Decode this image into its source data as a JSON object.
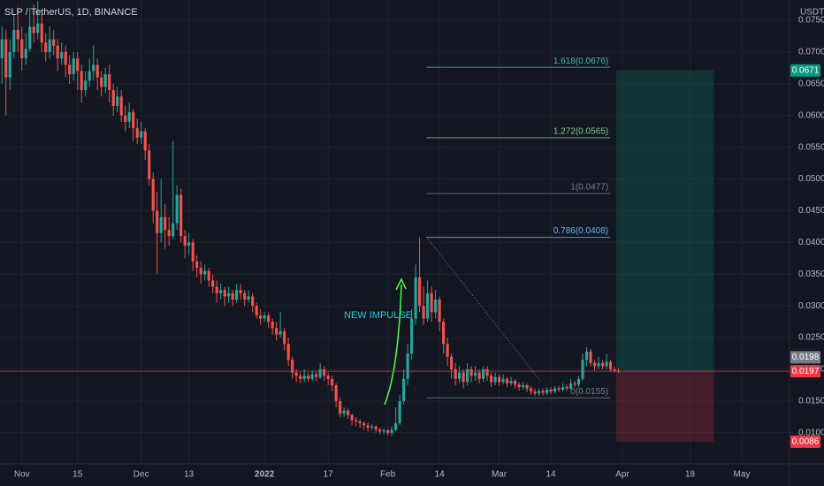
{
  "chart_data": {
    "type": "candlestick",
    "title": "SLP / TetherUS, 1D, BINANCE",
    "y_unit": "USDT",
    "up_color": "#26a69a",
    "down_color": "#ef5350",
    "ylim": [
      0.0051,
      0.0782
    ],
    "yticks": [
      {
        "value": 0.01,
        "label": "0.0100"
      },
      {
        "value": 0.015,
        "label": "0.0150"
      },
      {
        "value": 0.02,
        "label": "0.0200"
      },
      {
        "value": 0.025,
        "label": "0.0250"
      },
      {
        "value": 0.03,
        "label": "0.0300"
      },
      {
        "value": 0.035,
        "label": "0.0350"
      },
      {
        "value": 0.04,
        "label": "0.0400"
      },
      {
        "value": 0.045,
        "label": "0.0450"
      },
      {
        "value": 0.05,
        "label": "0.0500"
      },
      {
        "value": 0.055,
        "label": "0.0550"
      },
      {
        "value": 0.06,
        "label": "0.0600"
      },
      {
        "value": 0.065,
        "label": "0.0650"
      },
      {
        "value": 0.07,
        "label": "0.0700"
      },
      {
        "value": 0.075,
        "label": "0.0750"
      }
    ],
    "xlim": [
      -0.5,
      198
    ],
    "xticks": [
      {
        "value": 5,
        "label": "Nov"
      },
      {
        "value": 19,
        "label": "15"
      },
      {
        "value": 35,
        "label": "Dec"
      },
      {
        "value": 47,
        "label": "13"
      },
      {
        "value": 66,
        "label": "2022",
        "bold": true
      },
      {
        "value": 82,
        "label": "17"
      },
      {
        "value": 97,
        "label": "Feb"
      },
      {
        "value": 110,
        "label": "14"
      },
      {
        "value": 125,
        "label": "Mar"
      },
      {
        "value": 138,
        "label": "14"
      },
      {
        "value": 156,
        "label": "Apr"
      },
      {
        "value": 173,
        "label": "18"
      },
      {
        "value": 186,
        "label": "May"
      }
    ],
    "candles": [
      [
        0,
        0.069,
        0.074,
        0.065,
        0.072
      ],
      [
        1,
        0.072,
        0.0735,
        0.06,
        0.066
      ],
      [
        2,
        0.066,
        0.072,
        0.064,
        0.07
      ],
      [
        3,
        0.07,
        0.076,
        0.069,
        0.0735
      ],
      [
        4,
        0.0735,
        0.077,
        0.07,
        0.072
      ],
      [
        5,
        0.072,
        0.074,
        0.067,
        0.069
      ],
      [
        6,
        0.069,
        0.073,
        0.068,
        0.0705
      ],
      [
        7,
        0.0705,
        0.077,
        0.07,
        0.074
      ],
      [
        8,
        0.074,
        0.0775,
        0.0715,
        0.073
      ],
      [
        9,
        0.073,
        0.078,
        0.072,
        0.0745
      ],
      [
        10,
        0.0745,
        0.076,
        0.07,
        0.0715
      ],
      [
        11,
        0.0715,
        0.073,
        0.0685,
        0.07
      ],
      [
        12,
        0.07,
        0.074,
        0.069,
        0.072
      ],
      [
        13,
        0.072,
        0.0735,
        0.0695,
        0.071
      ],
      [
        14,
        0.071,
        0.072,
        0.067,
        0.069
      ],
      [
        15,
        0.069,
        0.0715,
        0.068,
        0.07
      ],
      [
        16,
        0.07,
        0.071,
        0.066,
        0.068
      ],
      [
        17,
        0.068,
        0.0695,
        0.065,
        0.0665
      ],
      [
        18,
        0.0665,
        0.07,
        0.0655,
        0.069
      ],
      [
        19,
        0.069,
        0.07,
        0.064,
        0.067
      ],
      [
        20,
        0.067,
        0.068,
        0.062,
        0.064
      ],
      [
        21,
        0.064,
        0.067,
        0.063,
        0.0655
      ],
      [
        22,
        0.0655,
        0.069,
        0.0645,
        0.067
      ],
      [
        23,
        0.067,
        0.071,
        0.0655,
        0.068
      ],
      [
        24,
        0.068,
        0.069,
        0.064,
        0.066
      ],
      [
        25,
        0.066,
        0.067,
        0.063,
        0.0645
      ],
      [
        26,
        0.0645,
        0.0675,
        0.0635,
        0.0665
      ],
      [
        27,
        0.0665,
        0.068,
        0.062,
        0.064
      ],
      [
        28,
        0.064,
        0.065,
        0.06,
        0.0615
      ],
      [
        29,
        0.0615,
        0.0645,
        0.0605,
        0.063
      ],
      [
        30,
        0.063,
        0.064,
        0.059,
        0.06
      ],
      [
        31,
        0.06,
        0.0615,
        0.0575,
        0.059
      ],
      [
        32,
        0.059,
        0.062,
        0.058,
        0.0605
      ],
      [
        33,
        0.0605,
        0.061,
        0.056,
        0.058
      ],
      [
        34,
        0.058,
        0.0595,
        0.0555,
        0.0565
      ],
      [
        35,
        0.0565,
        0.059,
        0.0555,
        0.0575
      ],
      [
        36,
        0.0575,
        0.058,
        0.053,
        0.0545
      ],
      [
        37,
        0.0545,
        0.0555,
        0.049,
        0.05
      ],
      [
        38,
        0.05,
        0.051,
        0.043,
        0.045
      ],
      [
        39,
        0.045,
        0.048,
        0.035,
        0.0415
      ],
      [
        40,
        0.0415,
        0.05,
        0.04,
        0.044
      ],
      [
        41,
        0.044,
        0.046,
        0.039,
        0.042
      ],
      [
        42,
        0.042,
        0.044,
        0.0395,
        0.041
      ],
      [
        43,
        0.041,
        0.056,
        0.0405,
        0.043
      ],
      [
        44,
        0.043,
        0.049,
        0.042,
        0.0475
      ],
      [
        45,
        0.0475,
        0.0485,
        0.04,
        0.041
      ],
      [
        46,
        0.041,
        0.042,
        0.0375,
        0.0395
      ],
      [
        47,
        0.0395,
        0.0415,
        0.038,
        0.04
      ],
      [
        48,
        0.04,
        0.0405,
        0.0355,
        0.037
      ],
      [
        49,
        0.037,
        0.038,
        0.0345,
        0.036
      ],
      [
        50,
        0.036,
        0.037,
        0.0335,
        0.035
      ],
      [
        51,
        0.035,
        0.0365,
        0.034,
        0.0355
      ],
      [
        52,
        0.0355,
        0.036,
        0.033,
        0.034
      ],
      [
        53,
        0.034,
        0.035,
        0.032,
        0.033
      ],
      [
        54,
        0.033,
        0.034,
        0.0305,
        0.032
      ],
      [
        55,
        0.032,
        0.0335,
        0.031,
        0.0325
      ],
      [
        56,
        0.0325,
        0.033,
        0.03,
        0.0315
      ],
      [
        57,
        0.0315,
        0.033,
        0.0305,
        0.032
      ],
      [
        58,
        0.032,
        0.0325,
        0.03,
        0.031
      ],
      [
        59,
        0.031,
        0.0335,
        0.0305,
        0.0325
      ],
      [
        60,
        0.0325,
        0.0335,
        0.031,
        0.032
      ],
      [
        61,
        0.032,
        0.0325,
        0.03,
        0.031
      ],
      [
        62,
        0.031,
        0.0325,
        0.0305,
        0.0315
      ],
      [
        63,
        0.0315,
        0.032,
        0.029,
        0.03
      ],
      [
        64,
        0.03,
        0.0305,
        0.028,
        0.0285
      ],
      [
        65,
        0.0285,
        0.0295,
        0.027,
        0.028
      ],
      [
        66,
        0.028,
        0.029,
        0.0275,
        0.0285
      ],
      [
        67,
        0.0285,
        0.029,
        0.0265,
        0.0275
      ],
      [
        68,
        0.0275,
        0.028,
        0.0255,
        0.0265
      ],
      [
        69,
        0.0265,
        0.0275,
        0.0245,
        0.0255
      ],
      [
        70,
        0.0255,
        0.029,
        0.025,
        0.026
      ],
      [
        71,
        0.026,
        0.0265,
        0.023,
        0.024
      ],
      [
        72,
        0.024,
        0.025,
        0.0205,
        0.0215
      ],
      [
        73,
        0.0215,
        0.022,
        0.0185,
        0.0195
      ],
      [
        74,
        0.0195,
        0.02,
        0.018,
        0.019
      ],
      [
        75,
        0.019,
        0.0195,
        0.0178,
        0.0185
      ],
      [
        76,
        0.0185,
        0.02,
        0.018,
        0.019
      ],
      [
        77,
        0.019,
        0.0195,
        0.018,
        0.0185
      ],
      [
        78,
        0.0185,
        0.0198,
        0.0182,
        0.0192
      ],
      [
        79,
        0.0192,
        0.0196,
        0.0182,
        0.0188
      ],
      [
        80,
        0.0188,
        0.021,
        0.0185,
        0.02
      ],
      [
        81,
        0.02,
        0.0205,
        0.0182,
        0.019
      ],
      [
        82,
        0.019,
        0.0195,
        0.0175,
        0.0185
      ],
      [
        83,
        0.0185,
        0.019,
        0.0165,
        0.0175
      ],
      [
        84,
        0.0175,
        0.0178,
        0.014,
        0.015
      ],
      [
        85,
        0.015,
        0.0155,
        0.0125,
        0.013
      ],
      [
        86,
        0.013,
        0.014,
        0.0125,
        0.0135
      ],
      [
        87,
        0.0135,
        0.0138,
        0.0122,
        0.0128
      ],
      [
        88,
        0.0128,
        0.013,
        0.0112,
        0.012
      ],
      [
        89,
        0.012,
        0.0125,
        0.011,
        0.0118
      ],
      [
        90,
        0.0118,
        0.0122,
        0.0108,
        0.0115
      ],
      [
        91,
        0.0115,
        0.0118,
        0.0105,
        0.0112
      ],
      [
        92,
        0.0112,
        0.0116,
        0.0102,
        0.0108
      ],
      [
        93,
        0.0108,
        0.0114,
        0.0104,
        0.011
      ],
      [
        94,
        0.011,
        0.0112,
        0.01,
        0.0105
      ],
      [
        95,
        0.0105,
        0.0108,
        0.0098,
        0.0102
      ],
      [
        96,
        0.0102,
        0.0107,
        0.0098,
        0.0104
      ],
      [
        97,
        0.0104,
        0.0106,
        0.0096,
        0.01
      ],
      [
        98,
        0.01,
        0.011,
        0.0095,
        0.0105
      ],
      [
        99,
        0.0105,
        0.014,
        0.0102,
        0.0115
      ],
      [
        100,
        0.0115,
        0.016,
        0.0112,
        0.015
      ],
      [
        101,
        0.015,
        0.02,
        0.0145,
        0.0185
      ],
      [
        102,
        0.0185,
        0.024,
        0.0175,
        0.0225
      ],
      [
        103,
        0.0225,
        0.0295,
        0.0215,
        0.028
      ],
      [
        104,
        0.028,
        0.0365,
        0.027,
        0.0345
      ],
      [
        105,
        0.0345,
        0.0408,
        0.029,
        0.03
      ],
      [
        106,
        0.03,
        0.033,
        0.027,
        0.028
      ],
      [
        107,
        0.028,
        0.034,
        0.0275,
        0.032
      ],
      [
        108,
        0.032,
        0.033,
        0.0275,
        0.029
      ],
      [
        109,
        0.029,
        0.0325,
        0.028,
        0.031
      ],
      [
        110,
        0.031,
        0.0315,
        0.026,
        0.0275
      ],
      [
        111,
        0.0275,
        0.028,
        0.0225,
        0.024
      ],
      [
        112,
        0.024,
        0.025,
        0.0205,
        0.022
      ],
      [
        113,
        0.022,
        0.0225,
        0.0185,
        0.02
      ],
      [
        114,
        0.02,
        0.021,
        0.0175,
        0.0185
      ],
      [
        115,
        0.0185,
        0.0205,
        0.0178,
        0.0195
      ],
      [
        116,
        0.0195,
        0.02,
        0.017,
        0.018
      ],
      [
        117,
        0.018,
        0.021,
        0.0175,
        0.02
      ],
      [
        118,
        0.02,
        0.0205,
        0.018,
        0.019
      ],
      [
        119,
        0.019,
        0.0205,
        0.0182,
        0.0195
      ],
      [
        120,
        0.0195,
        0.02,
        0.0178,
        0.0185
      ],
      [
        121,
        0.0185,
        0.0205,
        0.018,
        0.02
      ],
      [
        122,
        0.02,
        0.0205,
        0.0182,
        0.019
      ],
      [
        123,
        0.019,
        0.0195,
        0.0172,
        0.018
      ],
      [
        124,
        0.018,
        0.0195,
        0.0175,
        0.0188
      ],
      [
        125,
        0.0188,
        0.0192,
        0.0174,
        0.018
      ],
      [
        126,
        0.018,
        0.0192,
        0.0176,
        0.0185
      ],
      [
        127,
        0.0185,
        0.0188,
        0.0172,
        0.0178
      ],
      [
        128,
        0.0178,
        0.0188,
        0.0174,
        0.0182
      ],
      [
        129,
        0.0182,
        0.0185,
        0.017,
        0.0176
      ],
      [
        130,
        0.0176,
        0.018,
        0.0166,
        0.0172
      ],
      [
        131,
        0.0172,
        0.018,
        0.0168,
        0.0175
      ],
      [
        132,
        0.0175,
        0.0178,
        0.0164,
        0.017
      ],
      [
        133,
        0.017,
        0.0174,
        0.016,
        0.0165
      ],
      [
        134,
        0.0165,
        0.017,
        0.0158,
        0.0162
      ],
      [
        135,
        0.0162,
        0.017,
        0.0158,
        0.0166
      ],
      [
        136,
        0.0166,
        0.017,
        0.0159,
        0.0163
      ],
      [
        137,
        0.0163,
        0.0172,
        0.016,
        0.0168
      ],
      [
        138,
        0.0168,
        0.0172,
        0.0161,
        0.0165
      ],
      [
        139,
        0.0165,
        0.0174,
        0.0162,
        0.017
      ],
      [
        140,
        0.017,
        0.0174,
        0.0164,
        0.0168
      ],
      [
        141,
        0.0168,
        0.0178,
        0.0165,
        0.0172
      ],
      [
        142,
        0.0172,
        0.0176,
        0.0166,
        0.017
      ],
      [
        143,
        0.017,
        0.0185,
        0.0168,
        0.0178
      ],
      [
        144,
        0.0178,
        0.0182,
        0.0172,
        0.0176
      ],
      [
        145,
        0.0176,
        0.019,
        0.0172,
        0.0185
      ],
      [
        146,
        0.0185,
        0.0225,
        0.0182,
        0.0215
      ],
      [
        147,
        0.0215,
        0.0235,
        0.0205,
        0.0228
      ],
      [
        148,
        0.0228,
        0.0232,
        0.0205,
        0.021
      ],
      [
        149,
        0.021,
        0.0215,
        0.0198,
        0.0205
      ],
      [
        150,
        0.0205,
        0.022,
        0.02,
        0.021
      ],
      [
        151,
        0.021,
        0.0215,
        0.02,
        0.0205
      ],
      [
        152,
        0.0205,
        0.0225,
        0.02,
        0.0212
      ],
      [
        153,
        0.0212,
        0.0215,
        0.0196,
        0.02
      ],
      [
        154,
        0.02,
        0.0205,
        0.0195,
        0.0198
      ],
      [
        155,
        0.0198,
        0.0202,
        0.0194,
        0.0197
      ]
    ],
    "fib_xrange": [
      106.7,
      152.9
    ],
    "fib_levels": [
      {
        "value": 0.0676,
        "label": "1.618(0.0676)",
        "color": "#4db6ac"
      },
      {
        "value": 0.0565,
        "label": "1.272(0.0565)",
        "color": "#81c784"
      },
      {
        "value": 0.0477,
        "label": "1(0.0477)",
        "color": "#787b86"
      },
      {
        "value": 0.0408,
        "label": "0.786(0.0408)",
        "color": "#64b5f6"
      },
      {
        "value": 0.0155,
        "label": "0(0.0155)",
        "color": "#787b86"
      }
    ],
    "position": {
      "xrange": [
        154.4,
        179.1
      ],
      "target": 0.0671,
      "entry": 0.0197,
      "stop": 0.0086
    },
    "prev_close": 0.0198,
    "annotation": "NEW IMPULSE"
  }
}
